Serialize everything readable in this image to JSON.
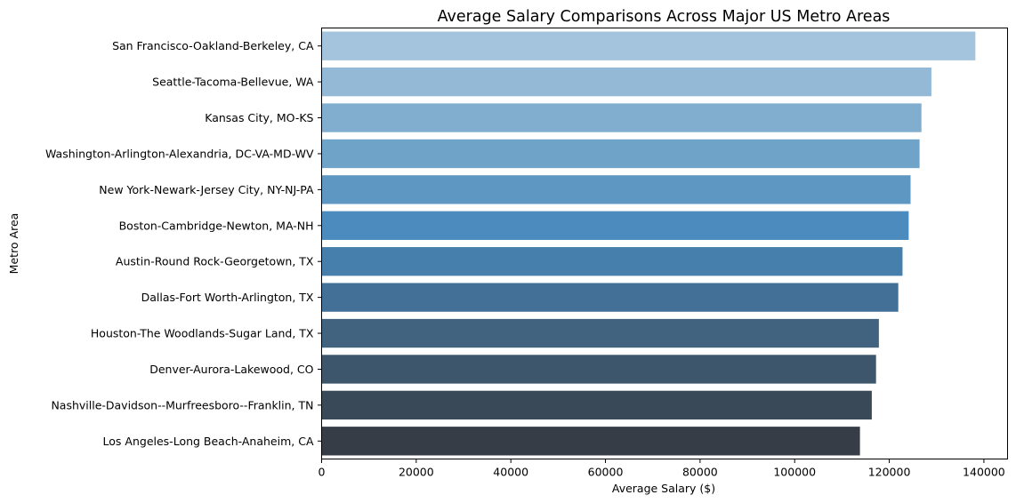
{
  "chart_data": {
    "type": "bar",
    "orientation": "horizontal",
    "title": "Average Salary Comparisons Across Major US Metro Areas",
    "xlabel": "Average Salary ($)",
    "ylabel": "Metro Area",
    "xlim": [
      0,
      145000
    ],
    "xticks": [
      0,
      20000,
      40000,
      60000,
      80000,
      100000,
      120000,
      140000
    ],
    "grid": false,
    "categories": [
      "San Francisco-Oakland-Berkeley, CA",
      "Seattle-Tacoma-Bellevue, WA",
      "Kansas City, MO-KS",
      "Washington-Arlington-Alexandria, DC-VA-MD-WV",
      "New York-Newark-Jersey City, NY-NJ-PA",
      "Boston-Cambridge-Newton, MA-NH",
      "Austin-Round Rock-Georgetown, TX",
      "Dallas-Fort Worth-Arlington, TX",
      "Houston-The Woodlands-Sugar Land, TX",
      "Denver-Aurora-Lakewood, CO",
      "Nashville-Davidson--Murfreesboro--Franklin, TN",
      "Los Angeles-Long Beach-Anaheim, CA"
    ],
    "values": [
      138200,
      128900,
      126800,
      126400,
      124500,
      124100,
      122800,
      121900,
      117800,
      117200,
      116300,
      113800
    ],
    "colors": [
      "#a3c4dc",
      "#93b9d6",
      "#81aecf",
      "#6fa3c8",
      "#5e97c1",
      "#4b8bbe",
      "#467fab",
      "#437096",
      "#416380",
      "#3e566b",
      "#3a4958",
      "#363d46"
    ]
  }
}
